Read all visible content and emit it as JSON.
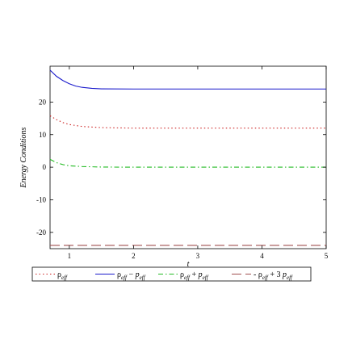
{
  "chart_data": {
    "type": "line",
    "title": "",
    "xlabel": "t",
    "ylabel": "Energy Conditions",
    "xlim": [
      0.7,
      5
    ],
    "ylim": [
      -25,
      31
    ],
    "xticks": [
      1,
      2,
      3,
      4,
      5
    ],
    "yticks": [
      -20,
      -10,
      0,
      10,
      20
    ],
    "grid": false,
    "legend_position": "bottom",
    "series": [
      {
        "name": "ρ_eff",
        "legend": {
          "pre": "",
          "parts": [
            [
              "ρ",
              "eff"
            ]
          ],
          "ops": []
        },
        "color": "#cc2222",
        "dash": "1.5,3",
        "x": [
          0.7,
          0.8,
          0.9,
          1.0,
          1.2,
          1.5,
          2.0,
          2.5,
          3.0,
          4.0,
          5.0
        ],
        "y": [
          15.8,
          14.6,
          13.7,
          13.1,
          12.5,
          12.15,
          12.0,
          12.0,
          12.0,
          12.0,
          12.0
        ]
      },
      {
        "name": "ρ_eff − p_eff",
        "legend": {
          "pre": "",
          "parts": [
            [
              "ρ",
              "eff"
            ],
            [
              "p",
              "eff"
            ]
          ],
          "ops": [
            " − "
          ]
        },
        "color": "#1a1acc",
        "dash": "",
        "x": [
          0.7,
          0.8,
          0.9,
          1.0,
          1.1,
          1.2,
          1.35,
          1.5,
          2.0,
          2.5,
          3.0,
          4.0,
          5.0
        ],
        "y": [
          29.8,
          27.9,
          26.6,
          25.6,
          24.9,
          24.5,
          24.2,
          24.05,
          24.0,
          24.0,
          24.0,
          24.0,
          24.0
        ]
      },
      {
        "name": "ρ_eff + p_eff",
        "legend": {
          "pre": "",
          "parts": [
            [
              "ρ",
              "eff"
            ],
            [
              "p",
              "eff"
            ]
          ],
          "ops": [
            " + "
          ]
        },
        "color": "#22bb22",
        "dash": "6,3,1.5,3",
        "x": [
          0.7,
          0.8,
          0.9,
          1.0,
          1.2,
          1.5,
          2.0,
          2.5,
          3.0,
          4.0,
          5.0
        ],
        "y": [
          2.4,
          1.4,
          0.8,
          0.45,
          0.2,
          0.05,
          0.0,
          0.0,
          0.0,
          0.0,
          0.0
        ]
      },
      {
        "name": "- ρ_eff + 3 p_eff",
        "legend": {
          "pre": "- ",
          "parts": [
            [
              "ρ",
              "eff"
            ],
            [
              "p",
              "eff"
            ]
          ],
          "ops": [
            " + 3 "
          ]
        },
        "color": "#a05050",
        "dash": "12,5",
        "x": [
          0.7,
          1.0,
          2.0,
          3.0,
          4.0,
          5.0
        ],
        "y": [
          -24.0,
          -24.0,
          -24.0,
          -24.0,
          -24.0,
          -24.0
        ]
      }
    ]
  }
}
